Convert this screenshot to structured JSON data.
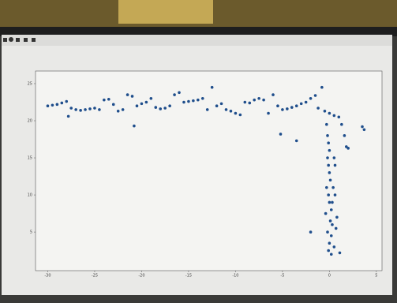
{
  "chart_data": {
    "type": "scatter",
    "color": "#1f4e8c",
    "x": [
      -30,
      -29.5,
      -29,
      -28.5,
      -28,
      -27.5,
      -27.8,
      -27,
      -26.5,
      -26,
      -25.5,
      -25,
      -24.5,
      -24,
      -23.5,
      -23,
      -22.5,
      -22,
      -21.5,
      -21,
      -20.5,
      -20,
      -19.5,
      -19,
      -18.5,
      -18,
      -17.5,
      -17,
      -16.5,
      -16,
      -15.5,
      -15,
      -14.5,
      -14,
      -13.5,
      -13,
      -12.5,
      -12,
      -11.5,
      -11,
      -10.5,
      -10,
      -9.5,
      -9,
      -8.5,
      -8,
      -7.5,
      -7,
      -6.5,
      -6,
      -5.5,
      -5,
      -4.5,
      -4,
      -3.5,
      -3,
      -2.5,
      -2,
      -1.5,
      -1.2,
      -0.8,
      -0.5,
      0,
      0.5,
      1,
      1.3,
      1.6,
      1.8,
      2,
      3.5,
      3.7,
      -20.8,
      -5.2,
      -3.5,
      -0.3,
      -0.2,
      -0.1,
      0,
      -0.2,
      -0.1,
      0,
      0.1,
      -0.3,
      -0.1,
      0,
      0.2,
      -0.4,
      0.1,
      0.3,
      -0.2,
      0.2,
      0,
      -0.1,
      0.2,
      0.5,
      0.6,
      0.4,
      0.6,
      0.3,
      -2,
      1.1,
      0.8,
      0.7,
      0.5
    ],
    "y": [
      22,
      22.1,
      22.2,
      22.4,
      22.6,
      21.7,
      20.6,
      21.5,
      21.4,
      21.5,
      21.6,
      21.7,
      21.5,
      22.8,
      22.9,
      22.2,
      21.3,
      21.5,
      23.5,
      23.3,
      22,
      22.3,
      22.5,
      23,
      21.8,
      21.6,
      21.7,
      22,
      23.5,
      23.8,
      22.5,
      22.6,
      22.7,
      22.8,
      23,
      21.5,
      24.5,
      22,
      22.3,
      21.5,
      21.3,
      21,
      20.8,
      22.5,
      22.4,
      22.8,
      23,
      22.8,
      21,
      23.5,
      22,
      21.5,
      21.6,
      21.8,
      22,
      22.3,
      22.5,
      23,
      23.4,
      21.7,
      24.5,
      21.3,
      21,
      20.7,
      20.5,
      19.5,
      18,
      16.5,
      16.3,
      19.2,
      18.8,
      19.3,
      18.2,
      17.3,
      19.5,
      18,
      17,
      16,
      15,
      14,
      13,
      12,
      11,
      10,
      9,
      8,
      7.5,
      6.5,
      6,
      5,
      4.5,
      3.5,
      2.5,
      2,
      15,
      14,
      11,
      10,
      9,
      5,
      2.2,
      7,
      5.5,
      3
    ],
    "xlim": [
      -31.3,
      5.6
    ],
    "ylim": [
      -0.2,
      26.7
    ],
    "xticks": [
      -30,
      -25,
      -20,
      -15,
      -10,
      -5,
      0,
      5
    ],
    "yticks": [
      5,
      10,
      15,
      20,
      25
    ]
  }
}
